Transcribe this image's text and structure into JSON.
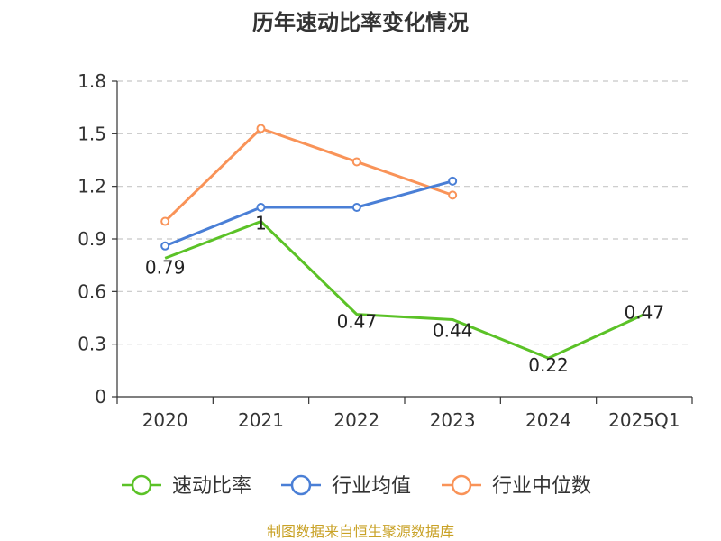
{
  "chart_data": {
    "type": "line",
    "title": "历年速动比率变化情况",
    "categories": [
      "2020",
      "2021",
      "2022",
      "2023",
      "2024",
      "2025Q1"
    ],
    "ylim": [
      0,
      1.8
    ],
    "yticks": [
      "0",
      "0.3",
      "0.6",
      "0.9",
      "1.2",
      "1.5",
      "1.8"
    ],
    "grid": true,
    "legend_position": "bottom",
    "series": [
      {
        "name": "速动比率",
        "color": "#5bc227",
        "values": [
          0.79,
          1,
          0.47,
          0.44,
          0.22,
          0.47
        ],
        "labels": [
          "0.79",
          "1",
          "0.47",
          "0.44",
          "0.22",
          "0.47"
        ],
        "markers": false
      },
      {
        "name": "行业均值",
        "color": "#4a7fd6",
        "values": [
          0.86,
          1.08,
          1.08,
          1.23,
          null,
          null
        ],
        "markers": true
      },
      {
        "name": "行业中位数",
        "color": "#f99358",
        "values": [
          1.0,
          1.53,
          1.34,
          1.15,
          null,
          null
        ],
        "markers": true
      }
    ],
    "source": "制图数据来自恒生聚源数据库"
  }
}
